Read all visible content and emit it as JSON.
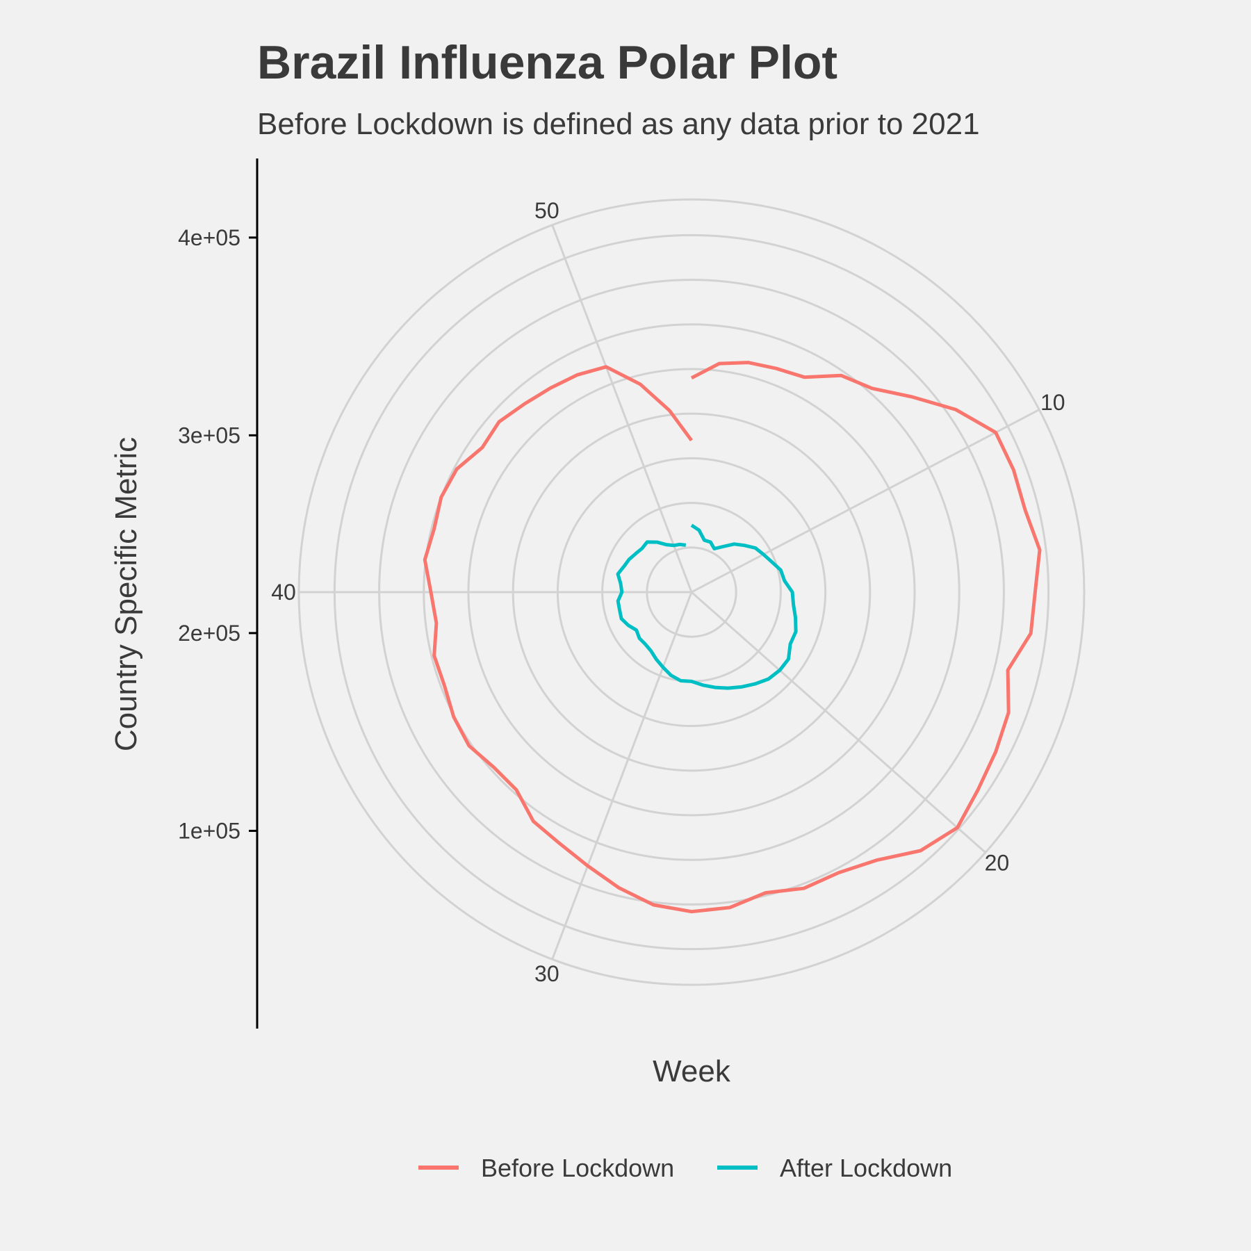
{
  "chart_data": {
    "type": "line",
    "coordinate_system": "polar",
    "title": "Brazil Influenza Polar Plot",
    "subtitle": "Before Lockdown is defined as any data prior to 2021",
    "xlabel": "Week",
    "ylabel": "Country Specific Metric",
    "xlim": [
      1,
      53
    ],
    "ylim": [
      0,
      440000.0
    ],
    "x_ticks": [
      10,
      20,
      30,
      40,
      50
    ],
    "x_tick_labels": [
      "10",
      "20",
      "30",
      "40",
      "50"
    ],
    "y_ticks": [
      100000,
      200000,
      300000,
      400000
    ],
    "y_tick_labels": [
      "1e+05",
      "2e+05",
      "3e+05",
      "4e+05"
    ],
    "grid": true,
    "legend_position": "bottom",
    "series": [
      {
        "name": "Before Lockdown",
        "color": "#F8766D",
        "x": [
          1,
          2,
          3,
          4,
          5,
          6,
          7,
          8,
          9,
          10,
          11,
          12,
          13,
          14,
          15,
          16,
          17,
          18,
          19,
          20,
          21,
          22,
          23,
          24,
          25,
          26,
          27,
          28,
          29,
          30,
          31,
          32,
          33,
          34,
          35,
          36,
          37,
          38,
          39,
          40,
          41,
          42,
          43,
          44,
          45,
          46,
          47,
          48,
          49,
          50,
          51,
          52,
          53
        ],
        "values": [
          240000,
          258000,
          265000,
          268000,
          272000,
          295000,
          305000,
          330000,
          360000,
          385000,
          386000,
          385000,
          393000,
          385000,
          383000,
          365000,
          380000,
          385000,
          390000,
          398000,
          387000,
          365000,
          355000,
          355000,
          347000,
          356000,
          358000,
          353000,
          341000,
          328000,
          318000,
          312000,
          296000,
          296000,
          303000,
          301000,
          296000,
          297000,
          288000,
          292000,
          301000,
          297000,
          300000,
          297000,
          285000,
          288000,
          282000,
          278000,
          275000,
          270000,
          240000,
          205000,
          170000
        ]
      },
      {
        "name": "After Lockdown",
        "color": "#00BFC4",
        "x": [
          1,
          2,
          3,
          4,
          5,
          6,
          7,
          8,
          9,
          10,
          11,
          12,
          13,
          14,
          15,
          16,
          17,
          18,
          19,
          20,
          21,
          22,
          23,
          24,
          25,
          26,
          27,
          28,
          29,
          30,
          31,
          32,
          33,
          34,
          35,
          36,
          37,
          38,
          39,
          40,
          41,
          42,
          43,
          44,
          45,
          46,
          47,
          48,
          49,
          50,
          51,
          52
        ],
        "values": [
          75000,
          70000,
          60000,
          60000,
          55000,
          62000,
          72000,
          79000,
          87000,
          91000,
          96000,
          103000,
          105000,
          113000,
          115000,
          120000,
          125000,
          125000,
          132000,
          132000,
          130000,
          125000,
          120000,
          115000,
          110000,
          105000,
          100000,
          100000,
          96000,
          90000,
          85000,
          80000,
          78000,
          78000,
          75000,
          80000,
          84000,
          83000,
          83000,
          78000,
          80000,
          85000,
          81000,
          79000,
          76000,
          74000,
          75000,
          68000,
          60000,
          56000,
          55000,
          53000
        ]
      }
    ]
  }
}
